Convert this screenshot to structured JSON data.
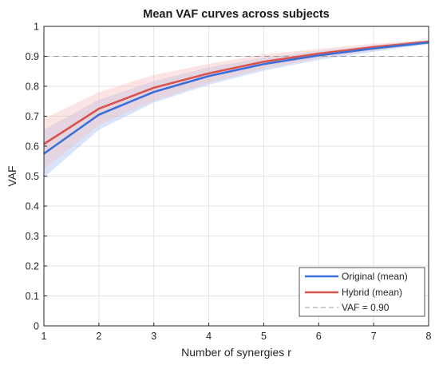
{
  "chart_data": {
    "type": "line",
    "title": "Mean VAF curves across subjects",
    "xlabel": "Number of synergies r",
    "ylabel": "VAF",
    "x": [
      1,
      2,
      3,
      4,
      5,
      6,
      7,
      8
    ],
    "xlim": [
      1,
      8
    ],
    "ylim": [
      0,
      1
    ],
    "xticks": [
      "1",
      "2",
      "3",
      "4",
      "5",
      "6",
      "7",
      "8"
    ],
    "yticks": [
      "0",
      "0.1",
      "0.2",
      "0.3",
      "0.4",
      "0.5",
      "0.6",
      "0.7",
      "0.8",
      "0.9",
      "1"
    ],
    "grid": true,
    "legend_position": "bottom-right",
    "series": [
      {
        "name": "Original (mean)",
        "color": "#3a6fd8",
        "band_color": "#a9c3f2",
        "values": [
          0.575,
          0.705,
          0.781,
          0.834,
          0.874,
          0.903,
          0.926,
          0.946
        ],
        "lower": [
          0.495,
          0.655,
          0.745,
          0.805,
          0.852,
          0.888,
          0.915,
          0.94
        ],
        "upper": [
          0.655,
          0.755,
          0.817,
          0.863,
          0.896,
          0.918,
          0.937,
          0.952
        ]
      },
      {
        "name": "Hybrid (mean)",
        "color": "#d9534f",
        "band_color": "#f6c4c2",
        "values": [
          0.607,
          0.725,
          0.795,
          0.843,
          0.882,
          0.909,
          0.931,
          0.949
        ],
        "lower": [
          0.522,
          0.67,
          0.752,
          0.811,
          0.858,
          0.893,
          0.92,
          0.943
        ],
        "upper": [
          0.692,
          0.78,
          0.838,
          0.875,
          0.906,
          0.925,
          0.942,
          0.955
        ]
      }
    ],
    "reference_line": {
      "name": "VAF = 0.90",
      "y": 0.9,
      "color": "#9a9a9a",
      "style": "dashed"
    }
  }
}
